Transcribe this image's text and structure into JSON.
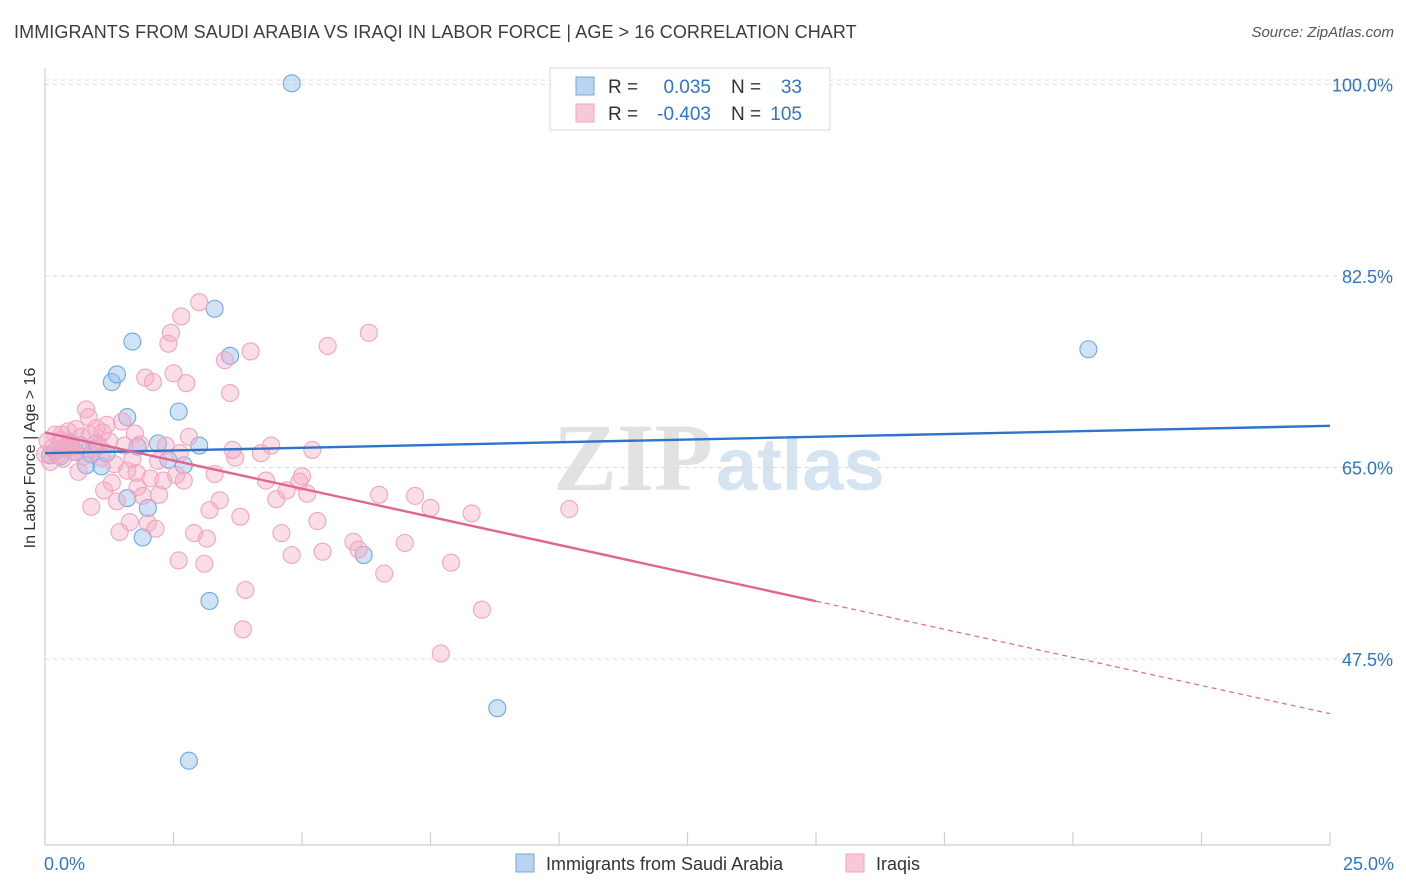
{
  "title": "IMMIGRANTS FROM SAUDI ARABIA VS IRAQI IN LABOR FORCE | AGE > 16 CORRELATION CHART",
  "source": "Source: ZipAtlas.com",
  "watermark": {
    "zip": "ZIP",
    "atlas": "atlas"
  },
  "chart_data": {
    "type": "scatter",
    "xlabel": "",
    "ylabel": "In Labor Force | Age > 16",
    "xlim": [
      0,
      25
    ],
    "ylim": [
      30.5,
      101.5
    ],
    "x_tick_labels": [
      "0.0%",
      "25.0%"
    ],
    "y_ticks": [
      47.5,
      65.0,
      82.5,
      100.0
    ],
    "y_tick_labels": [
      "47.5%",
      "65.0%",
      "82.5%",
      "100.0%"
    ],
    "grid": true,
    "legend_position": "top-center",
    "stats": [
      {
        "r_label": "R =",
        "r": "0.035",
        "n_label": "N =",
        "n": "33"
      },
      {
        "r_label": "R =",
        "r": "-0.403",
        "n_label": "N =",
        "n": "105"
      }
    ],
    "series": [
      {
        "name": "Immigrants from Saudi Arabia",
        "color": "#6fa8e0",
        "line_color": "#2f74cc",
        "trend": {
          "x0": 0,
          "y0": 66.3,
          "x1": 25,
          "y1": 68.8,
          "solid_to": 25
        },
        "points": [
          [
            0.1,
            66.1
          ],
          [
            0.2,
            66.5
          ],
          [
            0.3,
            66.0
          ],
          [
            0.4,
            66.8
          ],
          [
            0.5,
            67.3
          ],
          [
            0.6,
            66.4
          ],
          [
            0.8,
            65.2
          ],
          [
            0.9,
            66.2
          ],
          [
            1.0,
            67.2
          ],
          [
            1.1,
            65.1
          ],
          [
            1.3,
            72.8
          ],
          [
            1.4,
            73.5
          ],
          [
            1.6,
            69.6
          ],
          [
            1.7,
            76.5
          ],
          [
            1.8,
            66.9
          ],
          [
            1.9,
            58.6
          ],
          [
            2.0,
            61.3
          ],
          [
            2.2,
            67.2
          ],
          [
            2.4,
            65.7
          ],
          [
            2.6,
            70.1
          ],
          [
            2.7,
            65.2
          ],
          [
            3.0,
            67.0
          ],
          [
            3.2,
            52.8
          ],
          [
            3.3,
            79.5
          ],
          [
            3.6,
            75.2
          ],
          [
            4.8,
            100.1
          ],
          [
            6.2,
            57.0
          ],
          [
            8.8,
            43.0
          ],
          [
            2.8,
            38.2
          ],
          [
            20.3,
            75.8
          ],
          [
            1.6,
            62.2
          ],
          [
            0.7,
            67.0
          ],
          [
            1.2,
            66.3
          ]
        ]
      },
      {
        "name": "Iraqis",
        "color": "#f2a5bf",
        "line_color": "#e06692",
        "trend": {
          "x0": 0,
          "y0": 68.2,
          "x1": 25,
          "y1": 42.5,
          "solid_to": 15
        },
        "points": [
          [
            0.0,
            66.2
          ],
          [
            0.05,
            67.4
          ],
          [
            0.1,
            65.5
          ],
          [
            0.15,
            66.8
          ],
          [
            0.2,
            68.0
          ],
          [
            0.25,
            66.1
          ],
          [
            0.3,
            67.5
          ],
          [
            0.35,
            65.8
          ],
          [
            0.4,
            66.9
          ],
          [
            0.45,
            68.3
          ],
          [
            0.5,
            67.1
          ],
          [
            0.55,
            66.4
          ],
          [
            0.6,
            68.5
          ],
          [
            0.7,
            67.8
          ],
          [
            0.75,
            66.0
          ],
          [
            0.8,
            70.3
          ],
          [
            0.85,
            69.6
          ],
          [
            0.9,
            61.4
          ],
          [
            0.95,
            66.7
          ],
          [
            1.0,
            68.6
          ],
          [
            1.05,
            67.0
          ],
          [
            1.1,
            65.9
          ],
          [
            1.15,
            62.9
          ],
          [
            1.2,
            68.9
          ],
          [
            1.25,
            67.4
          ],
          [
            1.3,
            63.6
          ],
          [
            1.35,
            65.3
          ],
          [
            1.4,
            61.9
          ],
          [
            1.5,
            69.2
          ],
          [
            1.55,
            67.0
          ],
          [
            1.6,
            64.7
          ],
          [
            1.65,
            60.0
          ],
          [
            1.7,
            65.8
          ],
          [
            1.75,
            68.1
          ],
          [
            1.8,
            63.2
          ],
          [
            1.85,
            67.1
          ],
          [
            1.9,
            62.4
          ],
          [
            1.95,
            73.2
          ],
          [
            2.0,
            59.9
          ],
          [
            2.05,
            64.0
          ],
          [
            2.1,
            72.8
          ],
          [
            2.15,
            59.4
          ],
          [
            2.2,
            65.6
          ],
          [
            2.3,
            63.8
          ],
          [
            2.35,
            67.0
          ],
          [
            2.4,
            76.3
          ],
          [
            2.45,
            77.3
          ],
          [
            2.5,
            73.6
          ],
          [
            2.55,
            64.3
          ],
          [
            2.6,
            56.5
          ],
          [
            2.65,
            78.8
          ],
          [
            2.7,
            63.8
          ],
          [
            2.75,
            72.7
          ],
          [
            2.8,
            67.8
          ],
          [
            2.9,
            59.0
          ],
          [
            3.0,
            80.1
          ],
          [
            3.1,
            56.2
          ],
          [
            3.15,
            58.5
          ],
          [
            3.2,
            61.1
          ],
          [
            3.3,
            64.4
          ],
          [
            3.4,
            62.0
          ],
          [
            3.5,
            74.8
          ],
          [
            3.6,
            71.8
          ],
          [
            3.7,
            65.9
          ],
          [
            3.8,
            60.5
          ],
          [
            3.85,
            50.2
          ],
          [
            3.9,
            53.8
          ],
          [
            4.0,
            75.6
          ],
          [
            4.2,
            66.3
          ],
          [
            4.3,
            63.8
          ],
          [
            4.4,
            67.0
          ],
          [
            4.5,
            62.1
          ],
          [
            4.6,
            59.0
          ],
          [
            4.7,
            62.9
          ],
          [
            4.8,
            57.0
          ],
          [
            5.0,
            64.2
          ],
          [
            5.1,
            62.6
          ],
          [
            5.3,
            60.1
          ],
          [
            5.4,
            57.3
          ],
          [
            5.5,
            76.1
          ],
          [
            6.0,
            58.2
          ],
          [
            6.1,
            57.5
          ],
          [
            6.3,
            77.3
          ],
          [
            6.5,
            62.5
          ],
          [
            6.6,
            55.3
          ],
          [
            7.0,
            58.1
          ],
          [
            7.2,
            62.4
          ],
          [
            7.5,
            61.3
          ],
          [
            7.7,
            48.0
          ],
          [
            7.9,
            56.3
          ],
          [
            8.3,
            60.8
          ],
          [
            8.5,
            52.0
          ],
          [
            10.2,
            61.2
          ],
          [
            1.45,
            59.1
          ],
          [
            1.78,
            64.5
          ],
          [
            2.22,
            62.5
          ],
          [
            0.65,
            64.6
          ],
          [
            1.12,
            68.2
          ],
          [
            0.32,
            68.0
          ],
          [
            0.48,
            66.8
          ],
          [
            2.62,
            66.3
          ],
          [
            3.65,
            66.6
          ],
          [
            5.2,
            66.6
          ],
          [
            4.95,
            63.7
          ],
          [
            0.88,
            68.0
          ]
        ]
      }
    ]
  }
}
